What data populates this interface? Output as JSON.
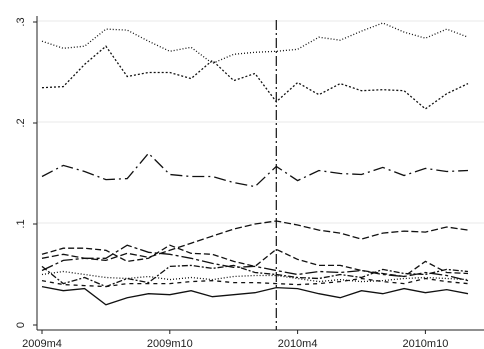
{
  "chart_data": {
    "type": "line",
    "title": "",
    "xlabel": "",
    "ylabel": "",
    "x_ticks": [
      "2009m4",
      "2009m10",
      "2010m4",
      "2010m10"
    ],
    "y_ticks": [
      ".3",
      ".2",
      ".1",
      "0"
    ],
    "x_range": [
      "2009m4",
      "2010m12"
    ],
    "ylim": [
      0,
      0.305
    ],
    "grid": "horizontal",
    "reference_line": {
      "x": "2010m3",
      "style": "dash-dot"
    },
    "x": [
      "2009m4",
      "2009m5",
      "2009m6",
      "2009m7",
      "2009m8",
      "2009m9",
      "2009m10",
      "2009m11",
      "2009m12",
      "2010m1",
      "2010m2",
      "2010m3",
      "2010m4",
      "2010m5",
      "2010m6",
      "2010m7",
      "2010m8",
      "2010m9",
      "2010m10",
      "2010m11",
      "2010m12"
    ],
    "series": [
      {
        "dash": "1,2",
        "color": "#777777",
        "values": [
          0.281,
          0.274,
          0.276,
          0.293,
          0.292,
          0.281,
          0.271,
          0.275,
          0.259,
          0.268,
          0.27,
          0.271,
          0.273,
          0.285,
          0.282,
          0.291,
          0.299,
          0.29,
          0.284,
          0.293,
          0.285
        ]
      },
      {
        "dash": "2,2",
        "color": "#111111",
        "values": [
          0.235,
          0.236,
          0.258,
          0.276,
          0.246,
          0.25,
          0.25,
          0.244,
          0.262,
          0.242,
          0.249,
          0.221,
          0.24,
          0.228,
          0.239,
          0.232,
          0.233,
          0.232,
          0.214,
          0.229,
          0.239
        ]
      },
      {
        "dash": "12,4,2,4",
        "color": "#111111",
        "values": [
          0.147,
          0.158,
          0.152,
          0.144,
          0.145,
          0.17,
          0.149,
          0.147,
          0.147,
          0.141,
          0.137,
          0.157,
          0.143,
          0.153,
          0.15,
          0.149,
          0.156,
          0.148,
          0.155,
          0.152,
          0.153
        ]
      },
      {
        "dash": "7,3",
        "color": "#111111",
        "values": [
          0.066,
          0.07,
          0.066,
          0.064,
          0.071,
          0.067,
          0.074,
          0.081,
          0.088,
          0.095,
          0.1,
          0.103,
          0.099,
          0.094,
          0.091,
          0.085,
          0.091,
          0.093,
          0.092,
          0.097,
          0.094
        ]
      },
      {
        "dash": "6,3",
        "color": "#111111",
        "values": [
          0.07,
          0.076,
          0.076,
          0.074,
          0.063,
          0.066,
          0.079,
          0.071,
          0.07,
          0.063,
          0.058,
          0.075,
          0.065,
          0.059,
          0.059,
          0.054,
          0.051,
          0.048,
          0.063,
          0.052,
          0.051
        ]
      },
      {
        "dash": "12,3,3,3",
        "color": "#111111",
        "values": [
          0.054,
          0.064,
          0.066,
          0.066,
          0.079,
          0.072,
          0.07,
          0.066,
          0.061,
          0.057,
          0.058,
          0.054,
          0.05,
          0.053,
          0.052,
          0.054,
          0.05,
          0.048,
          0.052,
          0.049,
          0.044
        ]
      },
      {
        "dash": "6,2,2,2",
        "color": "#111111",
        "values": [
          0.058,
          0.041,
          0.047,
          0.038,
          0.046,
          0.042,
          0.058,
          0.059,
          0.056,
          0.059,
          0.052,
          0.05,
          0.047,
          0.046,
          0.05,
          0.047,
          0.055,
          0.051,
          0.05,
          0.055,
          0.053
        ]
      },
      {
        "dash": "1,2",
        "color": "#777777",
        "values": [
          0.05,
          0.053,
          0.05,
          0.047,
          0.046,
          0.048,
          0.045,
          0.047,
          0.045,
          0.048,
          0.049,
          0.049,
          0.046,
          0.043,
          0.045,
          0.043,
          0.044,
          0.046,
          0.047,
          0.046,
          0.045
        ]
      },
      {
        "dash": "4,4",
        "color": "#111111",
        "values": [
          0.044,
          0.04,
          0.039,
          0.038,
          0.041,
          0.041,
          0.041,
          0.043,
          0.044,
          0.042,
          0.042,
          0.041,
          0.04,
          0.041,
          0.043,
          0.046,
          0.043,
          0.041,
          0.046,
          0.043,
          0.041
        ]
      },
      {
        "dash": "",
        "color": "#111111",
        "values": [
          0.038,
          0.034,
          0.036,
          0.02,
          0.027,
          0.031,
          0.03,
          0.034,
          0.028,
          0.03,
          0.032,
          0.037,
          0.036,
          0.031,
          0.027,
          0.034,
          0.031,
          0.036,
          0.032,
          0.035,
          0.031
        ]
      }
    ]
  }
}
